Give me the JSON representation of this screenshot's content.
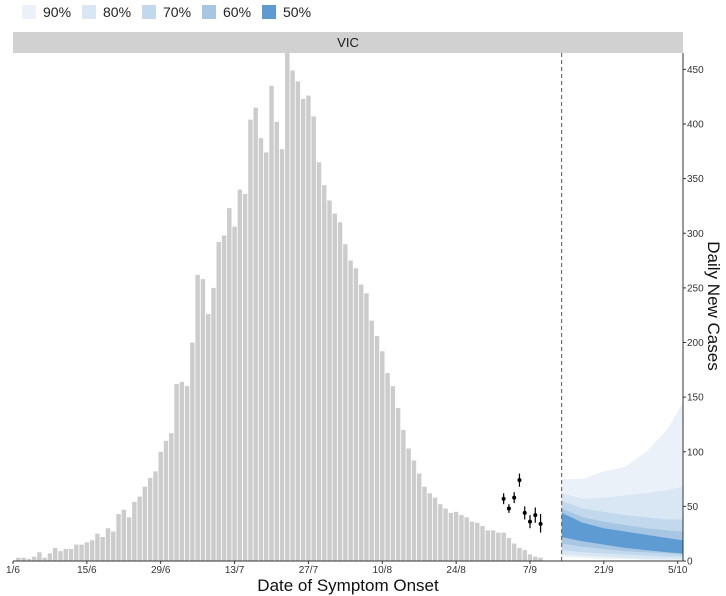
{
  "legend": [
    {
      "label": "90%",
      "color": "#eaf1f9"
    },
    {
      "label": "80%",
      "color": "#d8e7f3"
    },
    {
      "label": "70%",
      "color": "#c2d8ec"
    },
    {
      "label": "60%",
      "color": "#a6c6e4"
    },
    {
      "label": "50%",
      "color": "#5d9bd2"
    }
  ],
  "chart_data": {
    "type": "bar",
    "title": "VIC",
    "xlabel": "Date of Symptom Onset",
    "ylabel": "Daily New Cases",
    "ylim": [
      0,
      465
    ],
    "yticks": [
      0,
      50,
      100,
      150,
      200,
      250,
      300,
      350,
      400,
      450
    ],
    "x_start_day": 0,
    "xlim": [
      0,
      127
    ],
    "xticks": [
      {
        "day": 0,
        "label": "1/6"
      },
      {
        "day": 14,
        "label": "15/6"
      },
      {
        "day": 28,
        "label": "29/6"
      },
      {
        "day": 42,
        "label": "13/7"
      },
      {
        "day": 56,
        "label": "27/7"
      },
      {
        "day": 70,
        "label": "10/8"
      },
      {
        "day": 84,
        "label": "24/8"
      },
      {
        "day": 98,
        "label": "7/9"
      },
      {
        "day": 112,
        "label": "21/9"
      },
      {
        "day": 126,
        "label": "5/10"
      }
    ],
    "forecast_start_day": 104,
    "bar_color": "#cccccc",
    "bars": [
      0,
      3,
      3,
      2,
      4,
      8,
      3,
      7,
      12,
      9,
      11,
      11,
      15,
      15,
      17,
      19,
      25,
      22,
      30,
      27,
      43,
      47,
      40,
      54,
      59,
      68,
      76,
      82,
      100,
      110,
      117,
      162,
      164,
      160,
      200,
      262,
      258,
      226,
      250,
      292,
      298,
      323,
      306,
      340,
      336,
      404,
      415,
      387,
      374,
      435,
      402,
      377,
      465,
      449,
      439,
      423,
      426,
      407,
      365,
      344,
      330,
      318,
      310,
      290,
      275,
      268,
      253,
      245,
      220,
      206,
      192,
      172,
      160,
      140,
      120,
      103,
      92,
      80,
      68,
      62,
      58,
      52,
      48,
      44,
      45,
      42,
      40,
      36,
      35,
      32,
      28,
      28,
      26,
      26,
      21,
      16,
      12,
      10,
      6,
      4,
      3
    ],
    "nowcast_points": [
      {
        "day": 93,
        "value": 57,
        "lower": 52,
        "upper": 62
      },
      {
        "day": 94,
        "value": 48,
        "lower": 44,
        "upper": 52
      },
      {
        "day": 95,
        "value": 58,
        "lower": 53,
        "upper": 63
      },
      {
        "day": 96,
        "value": 74,
        "lower": 68,
        "upper": 80
      },
      {
        "day": 97,
        "value": 44,
        "lower": 38,
        "upper": 50
      },
      {
        "day": 98,
        "value": 36,
        "lower": 30,
        "upper": 42
      },
      {
        "day": 99,
        "value": 42,
        "lower": 35,
        "upper": 49
      },
      {
        "day": 100,
        "value": 34,
        "lower": 26,
        "upper": 43
      }
    ],
    "forecast_days": [
      104,
      108,
      112,
      116,
      120,
      124,
      128
    ],
    "forecast_bands": [
      {
        "level": "90%",
        "lower": [
          4,
          3,
          2,
          2,
          1,
          1,
          1
        ],
        "upper": [
          75,
          75,
          82,
          86,
          100,
          120,
          145
        ]
      },
      {
        "level": "80%",
        "lower": [
          6,
          5,
          4,
          3,
          2,
          2,
          2
        ],
        "upper": [
          62,
          57,
          58,
          60,
          62,
          65,
          68
        ]
      },
      {
        "level": "70%",
        "lower": [
          10,
          8,
          7,
          6,
          5,
          4,
          4
        ],
        "upper": [
          55,
          48,
          45,
          42,
          40,
          38,
          38
        ]
      },
      {
        "level": "60%",
        "lower": [
          16,
          13,
          11,
          9,
          8,
          7,
          6
        ],
        "upper": [
          48,
          40,
          36,
          33,
          30,
          28,
          27
        ]
      },
      {
        "level": "50%",
        "lower": [
          22,
          18,
          15,
          12,
          10,
          8,
          7
        ],
        "upper": [
          44,
          35,
          30,
          27,
          24,
          21,
          19
        ]
      }
    ]
  }
}
